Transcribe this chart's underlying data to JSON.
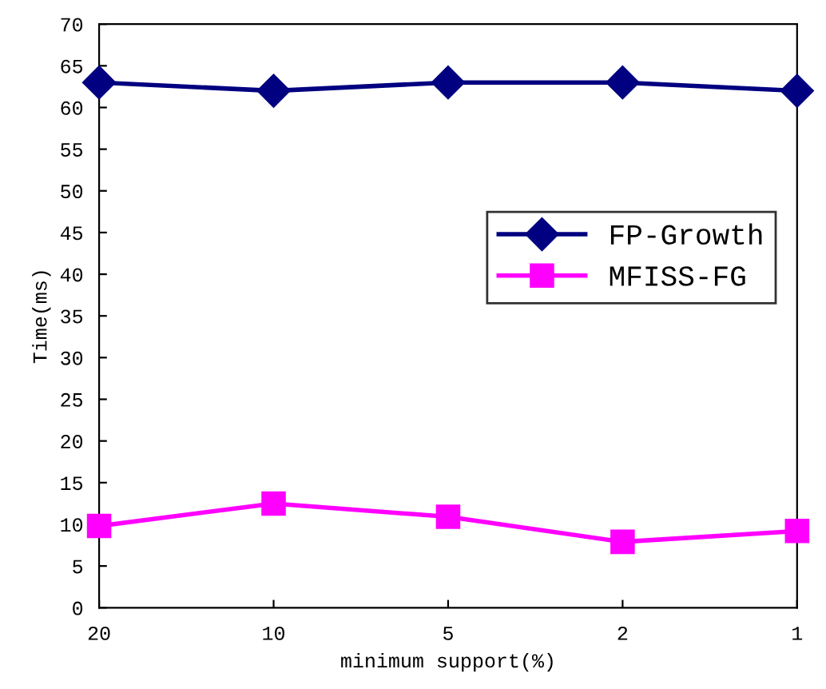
{
  "chart_data": {
    "type": "line",
    "xlabel": "minimum support(%)",
    "ylabel": "Time(ms)",
    "categories": [
      "20",
      "10",
      "5",
      "2",
      "1"
    ],
    "series": [
      {
        "name": "FP-Growth",
        "color": "#000080",
        "marker": "diamond",
        "values": [
          63,
          62,
          63,
          63,
          62
        ]
      },
      {
        "name": "MFISS-FG",
        "color": "#ff00ff",
        "marker": "square",
        "values": [
          9.8,
          12.5,
          10.9,
          7.9,
          9.2
        ]
      }
    ],
    "ylim": [
      0,
      70
    ],
    "yticks": [
      0,
      5,
      10,
      15,
      20,
      25,
      30,
      35,
      40,
      45,
      50,
      55,
      60,
      65,
      70
    ],
    "grid": false,
    "legend": "right",
    "line_style": "solid"
  }
}
